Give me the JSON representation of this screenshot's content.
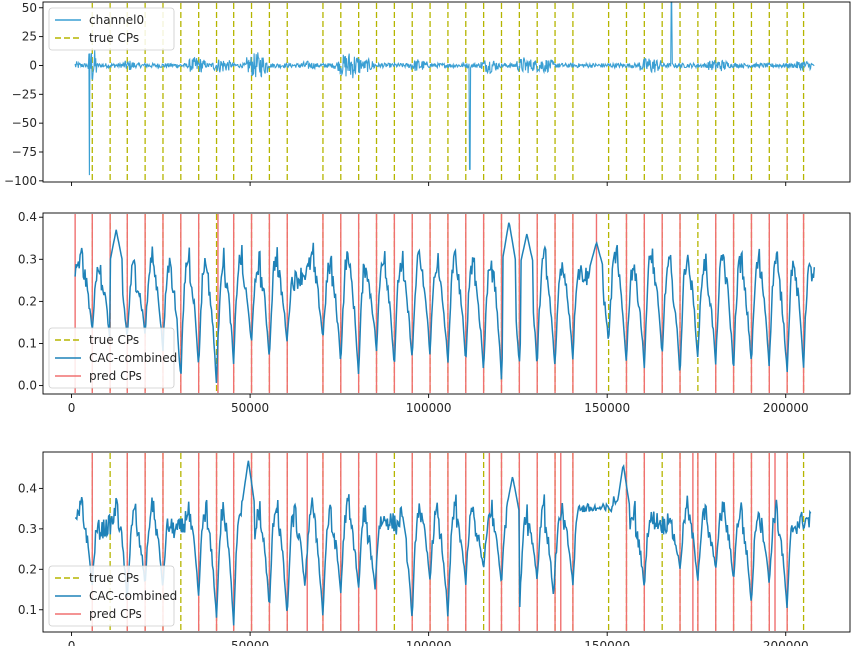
{
  "colors": {
    "signal": "#3a9fd3",
    "cac": "#1f82b8",
    "true_cp": "#b5b500",
    "pred_cp": "#f07070",
    "axes": "#000000"
  },
  "chart_data": [
    {
      "type": "line",
      "x_range": [
        0,
        208000
      ],
      "ylim": [
        -101,
        55
      ],
      "yticks": [
        50,
        25,
        0,
        -25,
        -50,
        -75,
        -100
      ],
      "ytick_labels": [
        "50",
        "25",
        "0",
        "−25",
        "−50",
        "−75",
        "−100"
      ],
      "xticks_shown": false,
      "legend_position": "upper-left",
      "legend": [
        "channel0",
        "true CPs"
      ],
      "series": [
        {
          "name": "channel0",
          "kind": "noisy-signal",
          "baseline": 0,
          "bursts": [
            {
              "x": 1000,
              "width": 1500,
              "amp": 4
            },
            {
              "x": 5800,
              "width": 1200,
              "amp": 18
            },
            {
              "x": 5000,
              "width": 300,
              "amp": 95,
              "spike": "down"
            },
            {
              "x": 16000,
              "width": 2000,
              "amp": 5
            },
            {
              "x": 35000,
              "width": 2500,
              "amp": 8
            },
            {
              "x": 42000,
              "width": 2500,
              "amp": 7
            },
            {
              "x": 52000,
              "width": 3000,
              "amp": 12
            },
            {
              "x": 66000,
              "width": 2500,
              "amp": 4
            },
            {
              "x": 76000,
              "width": 2500,
              "amp": 6
            },
            {
              "x": 78000,
              "width": 3000,
              "amp": 13
            },
            {
              "x": 83000,
              "width": 2000,
              "amp": 6
            },
            {
              "x": 97000,
              "width": 2500,
              "amp": 6
            },
            {
              "x": 111500,
              "width": 300,
              "amp": 90,
              "spike": "down"
            },
            {
              "x": 117000,
              "width": 2500,
              "amp": 7
            },
            {
              "x": 127000,
              "width": 2500,
              "amp": 8
            },
            {
              "x": 132000,
              "width": 3000,
              "amp": 7
            },
            {
              "x": 162000,
              "width": 3000,
              "amp": 8
            },
            {
              "x": 168000,
              "width": 300,
              "amp": 55,
              "spike": "up"
            },
            {
              "x": 181000,
              "width": 3000,
              "amp": 6
            },
            {
              "x": 205000,
              "width": 2500,
              "amp": 5
            }
          ]
        }
      ],
      "true_cps": [
        5800,
        10800,
        15600,
        20600,
        25600,
        30600,
        35600,
        40600,
        45400,
        50400,
        55400,
        60400,
        70400,
        75400,
        80400,
        85400,
        90400,
        95400,
        100400,
        105400,
        110400,
        115400,
        120400,
        125400,
        130400,
        135400,
        140400,
        150400,
        155400,
        160400,
        165400,
        170400,
        175400,
        180400,
        185400,
        190400,
        195400,
        200400,
        205000
      ]
    },
    {
      "type": "line",
      "xlim": [
        -8000,
        218000
      ],
      "ylim": [
        -0.02,
        0.41
      ],
      "xticks": [
        0,
        50000,
        100000,
        150000,
        200000
      ],
      "xtick_labels": [
        "0",
        "50000",
        "100000",
        "150000",
        "200000"
      ],
      "yticks": [
        0.0,
        0.1,
        0.2,
        0.3,
        0.4
      ],
      "ytick_labels": [
        "0.0",
        "0.1",
        "0.2",
        "0.3",
        "0.4"
      ],
      "legend_position": "lower-left",
      "legend": [
        "true CPs",
        "CAC-combined",
        "pred CPs"
      ],
      "series": [
        {
          "name": "CAC-combined",
          "x_start": 1000,
          "x_end": 208000,
          "base": 0.26,
          "dips": [
            {
              "x": 5800,
              "min": 0.13
            },
            {
              "x": 10800,
              "min": 0.1
            },
            {
              "x": 15600,
              "min": 0.11
            },
            {
              "x": 20600,
              "min": 0.12
            },
            {
              "x": 25600,
              "min": 0.08
            },
            {
              "x": 30600,
              "min": 0.01
            },
            {
              "x": 35600,
              "min": 0.04
            },
            {
              "x": 40600,
              "min": 0.0
            },
            {
              "x": 45400,
              "min": 0.05
            },
            {
              "x": 50400,
              "min": 0.1
            },
            {
              "x": 55400,
              "min": 0.06
            },
            {
              "x": 60400,
              "min": 0.1
            },
            {
              "x": 70400,
              "min": 0.11
            },
            {
              "x": 75400,
              "min": 0.05
            },
            {
              "x": 80400,
              "min": 0.02
            },
            {
              "x": 85400,
              "min": 0.08
            },
            {
              "x": 90400,
              "min": 0.04
            },
            {
              "x": 95400,
              "min": 0.06
            },
            {
              "x": 100400,
              "min": 0.07
            },
            {
              "x": 105400,
              "min": 0.05
            },
            {
              "x": 110400,
              "min": 0.05
            },
            {
              "x": 115400,
              "min": 0.03
            },
            {
              "x": 120400,
              "min": 0.01
            },
            {
              "x": 125400,
              "min": 0.05
            },
            {
              "x": 130400,
              "min": 0.04
            },
            {
              "x": 135400,
              "min": 0.04
            },
            {
              "x": 140400,
              "min": 0.06
            },
            {
              "x": 150400,
              "min": 0.1
            },
            {
              "x": 155400,
              "min": 0.05
            },
            {
              "x": 160400,
              "min": 0.04
            },
            {
              "x": 165400,
              "min": 0.07
            },
            {
              "x": 170400,
              "min": 0.02
            },
            {
              "x": 175400,
              "min": 0.06
            },
            {
              "x": 180400,
              "min": 0.05
            },
            {
              "x": 185400,
              "min": 0.03
            },
            {
              "x": 190400,
              "min": 0.05
            },
            {
              "x": 195400,
              "min": 0.04
            },
            {
              "x": 200400,
              "min": 0.03
            },
            {
              "x": 205000,
              "min": 0.04
            }
          ],
          "peaks": [
            {
              "x": 12500,
              "max": 0.37
            },
            {
              "x": 122500,
              "max": 0.39
            },
            {
              "x": 127500,
              "max": 0.36
            },
            {
              "x": 147000,
              "max": 0.34
            }
          ]
        }
      ],
      "true_cps": [
        5800,
        10800,
        15600,
        20600,
        25600,
        30600,
        35600,
        40600,
        45400,
        50400,
        55400,
        60400,
        70400,
        75400,
        80400,
        85400,
        90400,
        95400,
        100400,
        105400,
        110400,
        115400,
        120400,
        125400,
        130400,
        135400,
        140400,
        150400,
        155400,
        160400,
        165400,
        170400,
        175400,
        180400,
        185400,
        190400,
        195400,
        200400,
        205000
      ],
      "pred_cps": [
        1000,
        5800,
        10800,
        15600,
        20600,
        25600,
        30600,
        35600,
        41000,
        45400,
        50400,
        55400,
        60400,
        70400,
        75400,
        80400,
        85400,
        90400,
        95400,
        100400,
        105400,
        110400,
        115400,
        120400,
        125400,
        130400,
        135400,
        140400,
        147000,
        155400,
        160400,
        165400,
        170400,
        180400,
        185400,
        190400,
        195400,
        200400,
        205000
      ]
    },
    {
      "type": "line",
      "xlim": [
        -8000,
        218000
      ],
      "ylim": [
        0.045,
        0.49
      ],
      "xticks": [
        0,
        50000,
        100000,
        150000,
        200000
      ],
      "xtick_labels": [
        "0",
        "50000",
        "100000",
        "150000",
        "200000"
      ],
      "yticks": [
        0.1,
        0.2,
        0.3,
        0.4
      ],
      "ytick_labels": [
        "0.1",
        "0.2",
        "0.3",
        "0.4"
      ],
      "legend_position": "lower-left",
      "legend": [
        "true CPs",
        "CAC-combined",
        "pred CPs"
      ],
      "series": [
        {
          "name": "CAC-combined",
          "x_start": 1000,
          "x_end": 207000,
          "base": 0.31,
          "dips": [
            {
              "x": 5800,
              "min": 0.16
            },
            {
              "x": 15600,
              "min": 0.12
            },
            {
              "x": 20600,
              "min": 0.16
            },
            {
              "x": 25600,
              "min": 0.15
            },
            {
              "x": 35600,
              "min": 0.13
            },
            {
              "x": 40600,
              "min": 0.08
            },
            {
              "x": 45400,
              "min": 0.06
            },
            {
              "x": 50400,
              "min": 0.1
            },
            {
              "x": 55400,
              "min": 0.1
            },
            {
              "x": 60400,
              "min": 0.08
            },
            {
              "x": 65400,
              "min": 0.15
            },
            {
              "x": 70400,
              "min": 0.08
            },
            {
              "x": 75400,
              "min": 0.14
            },
            {
              "x": 80400,
              "min": 0.15
            },
            {
              "x": 85000,
              "min": 0.15
            },
            {
              "x": 95400,
              "min": 0.07
            },
            {
              "x": 100400,
              "min": 0.17
            },
            {
              "x": 105400,
              "min": 0.08
            },
            {
              "x": 110400,
              "min": 0.16
            },
            {
              "x": 115400,
              "min": 0.2
            },
            {
              "x": 120400,
              "min": 0.16
            },
            {
              "x": 125400,
              "min": 0.08
            },
            {
              "x": 130400,
              "min": 0.17
            },
            {
              "x": 135000,
              "min": 0.13
            },
            {
              "x": 140400,
              "min": 0.16
            },
            {
              "x": 155400,
              "min": 0.08
            },
            {
              "x": 160400,
              "min": 0.15
            },
            {
              "x": 170400,
              "min": 0.2
            },
            {
              "x": 175400,
              "min": 0.17
            },
            {
              "x": 180400,
              "min": 0.2
            },
            {
              "x": 185400,
              "min": 0.17
            },
            {
              "x": 190400,
              "min": 0.11
            },
            {
              "x": 195400,
              "min": 0.16
            },
            {
              "x": 200400,
              "min": 0.1
            }
          ],
          "peaks": [
            {
              "x": 49500,
              "max": 0.47
            },
            {
              "x": 123500,
              "max": 0.43
            },
            {
              "x": 154500,
              "max": 0.46
            }
          ],
          "plateaus": [
            {
              "x0": 141000,
              "x1": 152000,
              "level": 0.35
            }
          ]
        }
      ],
      "true_cps": [
        5800,
        10800,
        15600,
        20600,
        25600,
        30600,
        35600,
        40600,
        45400,
        50400,
        55400,
        60400,
        70400,
        75400,
        80400,
        90400,
        95400,
        100400,
        105400,
        110400,
        115400,
        120400,
        125400,
        130400,
        135400,
        140400,
        150400,
        155400,
        160400,
        165400,
        170400,
        175400,
        180400,
        185400,
        190400,
        195400,
        200400,
        205000
      ],
      "pred_cps": [
        5800,
        15600,
        20600,
        25600,
        35600,
        40600,
        45400,
        50400,
        55400,
        60400,
        66000,
        70400,
        75400,
        80400,
        85400,
        95400,
        100400,
        105400,
        110400,
        117000,
        120400,
        125400,
        130400,
        135400,
        137000,
        140400,
        155400,
        160400,
        170400,
        174000,
        175400,
        180400,
        185400,
        190400,
        195400,
        197000,
        200400
      ]
    }
  ]
}
